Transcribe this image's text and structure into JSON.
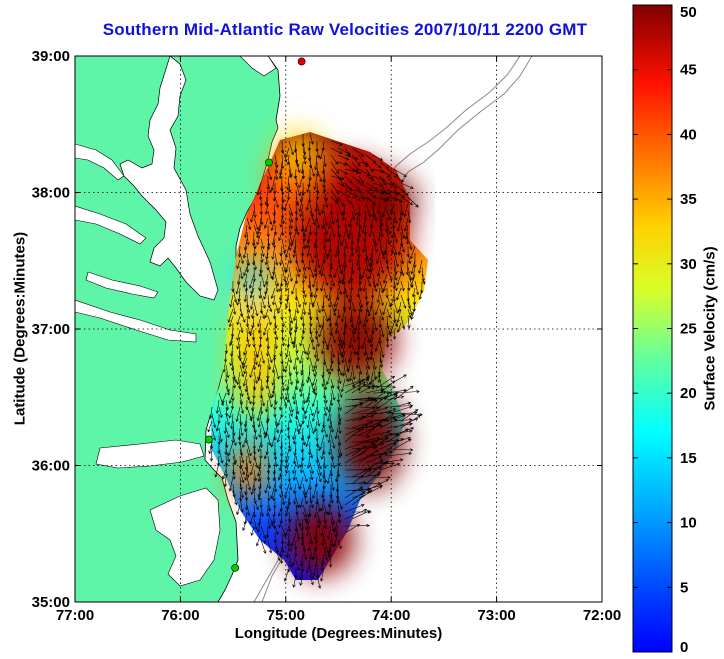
{
  "title": "Southern Mid-Atlantic Raw Velocities 2007/10/11 2200 GMT",
  "map": {
    "x_axis_label": "Longitude (Degrees:Minutes)",
    "y_axis_label": "Latitude (Degrees:Minutes)",
    "x_ticks": [
      "77:00",
      "76:00",
      "75:00",
      "74:00",
      "73:00",
      "72:00"
    ],
    "y_ticks": [
      "39:00",
      "38:00",
      "37:00",
      "36:00",
      "35:00"
    ],
    "lon_range": [
      -77,
      -72
    ],
    "lat_range": [
      35,
      39
    ],
    "grid": "dotted",
    "land_color": "#5ef5a8",
    "water_color": "#ffffff",
    "coastline_color": "#000000",
    "bathymetry_color": "#8a8a8a",
    "vector_color": "#000000",
    "radar_sites": [
      {
        "lon": -74.85,
        "lat": 38.96,
        "color": "#e00000"
      },
      {
        "lon": -75.16,
        "lat": 38.22,
        "color": "#00cc00"
      },
      {
        "lon": -75.73,
        "lat": 36.19,
        "color": "#00cc00"
      },
      {
        "lon": -75.48,
        "lat": 35.25,
        "color": "#00cc00"
      }
    ]
  },
  "colorbar": {
    "label": "Surface Velocity (cm/s)",
    "ticks": [
      "0",
      "5",
      "10",
      "15",
      "20",
      "25",
      "30",
      "35",
      "40",
      "45",
      "50"
    ],
    "range": [
      0,
      50
    ],
    "colormap": "jet"
  }
}
